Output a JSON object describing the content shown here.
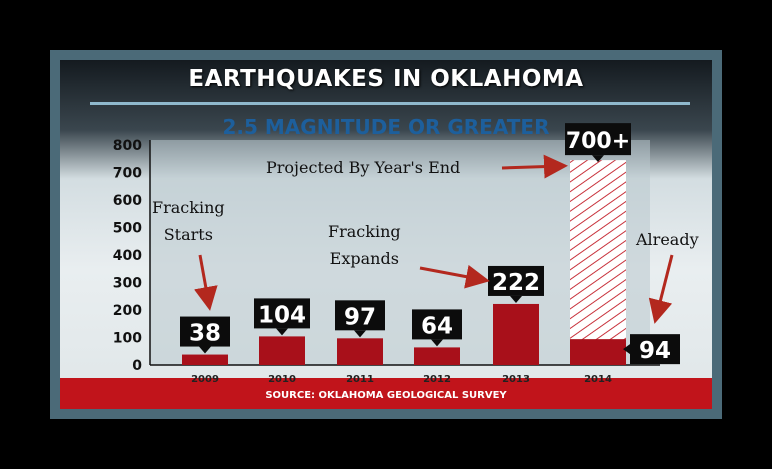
{
  "chart_data": {
    "type": "bar",
    "title": "EARTHQUAKES IN OKLAHOMA",
    "subtitle": "2.5 MAGNITUDE OR GREATER",
    "xlabel": "",
    "ylabel": "",
    "ylim": [
      0,
      800
    ],
    "yticks": [
      0,
      100,
      200,
      300,
      400,
      500,
      600,
      700,
      800
    ],
    "grid": false,
    "categories": [
      "2009",
      "2010",
      "2011",
      "2012",
      "2013",
      "2014"
    ],
    "values": [
      38,
      104,
      97,
      64,
      222,
      94
    ],
    "value_labels": [
      "38",
      "104",
      "97",
      "64",
      "222",
      "94"
    ],
    "projected": {
      "category": "2014",
      "value": 745,
      "label": "700+"
    },
    "source": "SOURCE: OKLAHOMA GEOLOGICAL SURVEY",
    "annotations": {
      "fracking_starts": [
        "Fracking",
        "Starts"
      ],
      "fracking_expands": [
        "Fracking",
        "Expands"
      ],
      "projected": "Projected By Year's End",
      "already": "Already"
    },
    "colors": {
      "bar": "#a8101a",
      "hatch": "#c8323c",
      "label_box": "#0c0c0c",
      "arrow": "#b3281e"
    }
  }
}
